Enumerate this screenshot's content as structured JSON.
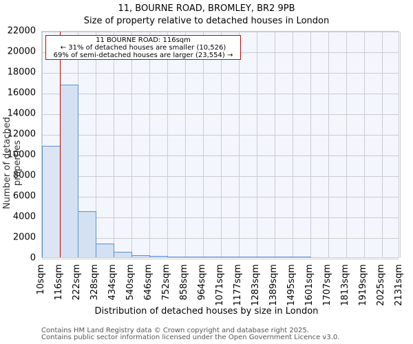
{
  "header": {
    "title": "11, BOURNE ROAD, BROMLEY, BR2 9PB",
    "subtitle": "Size of property relative to detached houses in London"
  },
  "annotation": {
    "line1": "11 BOURNE ROAD: 116sqm",
    "line2": "← 31% of detached houses are smaller (10,526)",
    "line3": "69% of semi-detached houses are larger (23,554) →"
  },
  "footer": {
    "line1": "Contains HM Land Registry data © Crown copyright and database right 2025.",
    "line2": "Contains public sector information licensed under the Open Government Licence v3.0."
  },
  "colors": {
    "bar_fill": "#d4e1f3",
    "bar_edge": "#5b8fd0",
    "marker": "#cc0000",
    "plot_bg": "#f3f6fd"
  },
  "chart_data": {
    "type": "bar",
    "title": "11, BOURNE ROAD, BROMLEY, BR2 9PB — Size of property relative to detached houses in London",
    "xlabel": "Distribution of detached houses by size in London",
    "ylabel": "Number of detached properties",
    "ylim": [
      0,
      22000
    ],
    "yticks": [
      "0",
      "2000",
      "4000",
      "6000",
      "8000",
      "10000",
      "12000",
      "14000",
      "16000",
      "18000",
      "20000",
      "22000"
    ],
    "categories": [
      "10sqm",
      "116sqm",
      "222sqm",
      "328sqm",
      "434sqm",
      "540sqm",
      "646sqm",
      "752sqm",
      "858sqm",
      "964sqm",
      "1071sqm",
      "1177sqm",
      "1283sqm",
      "1389sqm",
      "1495sqm",
      "1601sqm",
      "1707sqm",
      "1813sqm",
      "1919sqm",
      "2025sqm",
      "2131sqm"
    ],
    "values": [
      10800,
      16750,
      4470,
      1330,
      530,
      200,
      110,
      50,
      30,
      10,
      5,
      3,
      2,
      1,
      1,
      0,
      0,
      0,
      0,
      0
    ],
    "marker": {
      "x": "116sqm",
      "label": "11 BOURNE ROAD: 116sqm"
    },
    "grid": true
  }
}
